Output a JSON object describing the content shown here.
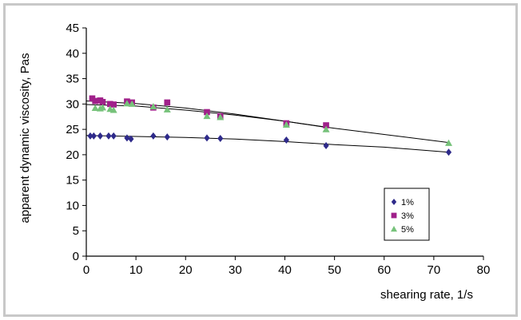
{
  "chart_data": {
    "type": "scatter",
    "title": "",
    "xlabel": "shearing rate, 1/s",
    "ylabel": "apparent dynamic viscosity, Pas",
    "xlim": [
      0,
      80
    ],
    "ylim": [
      0,
      45
    ],
    "xticks": [
      "0",
      "10",
      "20",
      "30",
      "40",
      "50",
      "60",
      "70",
      "80"
    ],
    "yticks": [
      "0",
      "5",
      "10",
      "15",
      "20",
      "25",
      "30",
      "35",
      "40",
      "45"
    ],
    "grid": false,
    "legend_position": "right",
    "series": [
      {
        "name": "1%",
        "marker": "diamond",
        "color": "#2e2a8a",
        "points": [
          [
            0.8,
            23.7
          ],
          [
            1.5,
            23.7
          ],
          [
            2.8,
            23.7
          ],
          [
            4.5,
            23.7
          ],
          [
            5.5,
            23.7
          ],
          [
            8.2,
            23.3
          ],
          [
            9.0,
            23.1
          ],
          [
            13.5,
            23.7
          ],
          [
            16.3,
            23.5
          ],
          [
            24.3,
            23.3
          ],
          [
            27.0,
            23.2
          ],
          [
            40.3,
            22.9
          ],
          [
            48.3,
            21.8
          ],
          [
            73.0,
            20.5
          ]
        ],
        "trend": [
          [
            0,
            23.8
          ],
          [
            10,
            23.6
          ],
          [
            20,
            23.4
          ],
          [
            30,
            23.1
          ],
          [
            40,
            22.6
          ],
          [
            50,
            22.0
          ],
          [
            60,
            21.5
          ],
          [
            73,
            20.5
          ]
        ]
      },
      {
        "name": "3%",
        "marker": "square",
        "color": "#a0208a",
        "points": [
          [
            1.2,
            31.1
          ],
          [
            1.8,
            30.6
          ],
          [
            2.8,
            30.7
          ],
          [
            3.3,
            30.4
          ],
          [
            4.8,
            30.0
          ],
          [
            5.5,
            29.9
          ],
          [
            8.2,
            30.5
          ],
          [
            9.2,
            30.3
          ],
          [
            13.5,
            29.3
          ],
          [
            16.3,
            30.3
          ],
          [
            24.3,
            28.4
          ],
          [
            27.0,
            27.6
          ],
          [
            40.3,
            26.2
          ],
          [
            48.3,
            25.8
          ]
        ],
        "trend": [
          [
            0,
            30.6
          ],
          [
            10,
            30.1
          ],
          [
            20,
            29.2
          ],
          [
            30,
            28.0
          ],
          [
            40,
            26.6
          ],
          [
            48.3,
            25.4
          ]
        ]
      },
      {
        "name": "5%",
        "marker": "triangle",
        "color": "#76c27a",
        "points": [
          [
            1.8,
            29.2
          ],
          [
            2.8,
            29.1
          ],
          [
            3.3,
            29.3
          ],
          [
            4.8,
            29.0
          ],
          [
            5.5,
            28.8
          ],
          [
            8.2,
            30.1
          ],
          [
            9.2,
            30.0
          ],
          [
            13.5,
            29.5
          ],
          [
            16.3,
            28.9
          ],
          [
            24.3,
            27.6
          ],
          [
            27.0,
            27.4
          ],
          [
            40.3,
            25.9
          ],
          [
            48.3,
            25.0
          ],
          [
            73.0,
            22.3
          ]
        ],
        "trend": [
          [
            0,
            29.9
          ],
          [
            10,
            29.6
          ],
          [
            20,
            28.8
          ],
          [
            30,
            27.8
          ],
          [
            40,
            26.6
          ],
          [
            50,
            25.2
          ],
          [
            60,
            24.0
          ],
          [
            73,
            22.4
          ]
        ]
      }
    ]
  }
}
